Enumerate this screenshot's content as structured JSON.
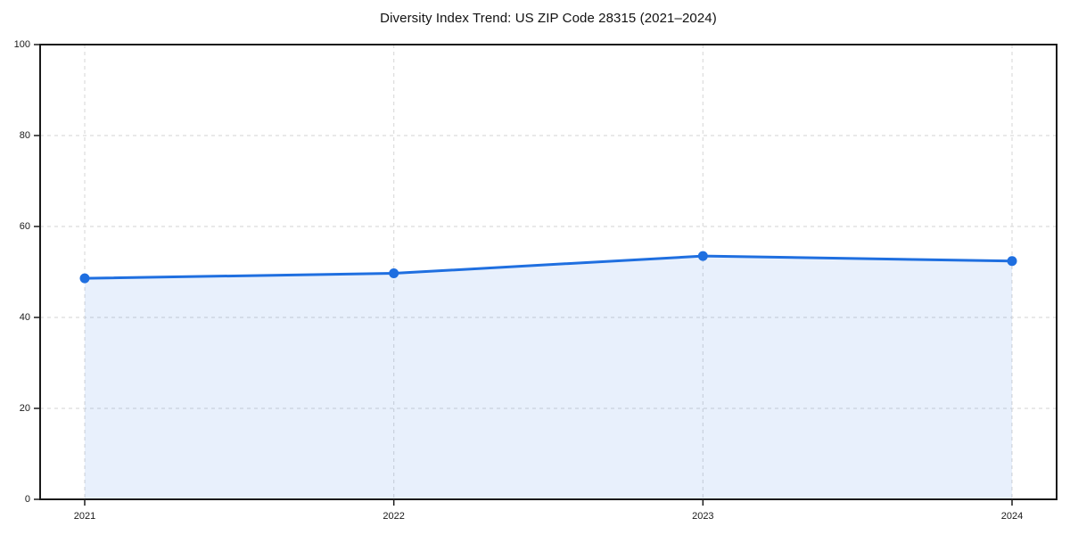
{
  "chart_data": {
    "type": "area",
    "title": "Diversity Index Trend: US ZIP Code 28315 (2021–2024)",
    "categories": [
      "2021",
      "2022",
      "2023",
      "2024"
    ],
    "x": [
      2021,
      2022,
      2023,
      2024
    ],
    "series": [
      {
        "name": "Diversity Index",
        "values": [
          48.6,
          49.7,
          53.5,
          52.4
        ]
      }
    ],
    "xlabel": "",
    "ylabel": "",
    "ylim": [
      0,
      100
    ],
    "yticks": [
      0,
      20,
      40,
      60,
      80,
      100
    ],
    "grid": true,
    "grid_style": "dashed",
    "legend_position": "none",
    "colors": {
      "line": "#1f6fe0",
      "marker": "#1f6fe0",
      "fill": "rgba(31,111,224,0.10)",
      "grid": "#dcdcdc",
      "axis": "#1a1a1a",
      "tick_label": "#1a1a1a",
      "title": "#111111",
      "background": "#ffffff"
    }
  }
}
